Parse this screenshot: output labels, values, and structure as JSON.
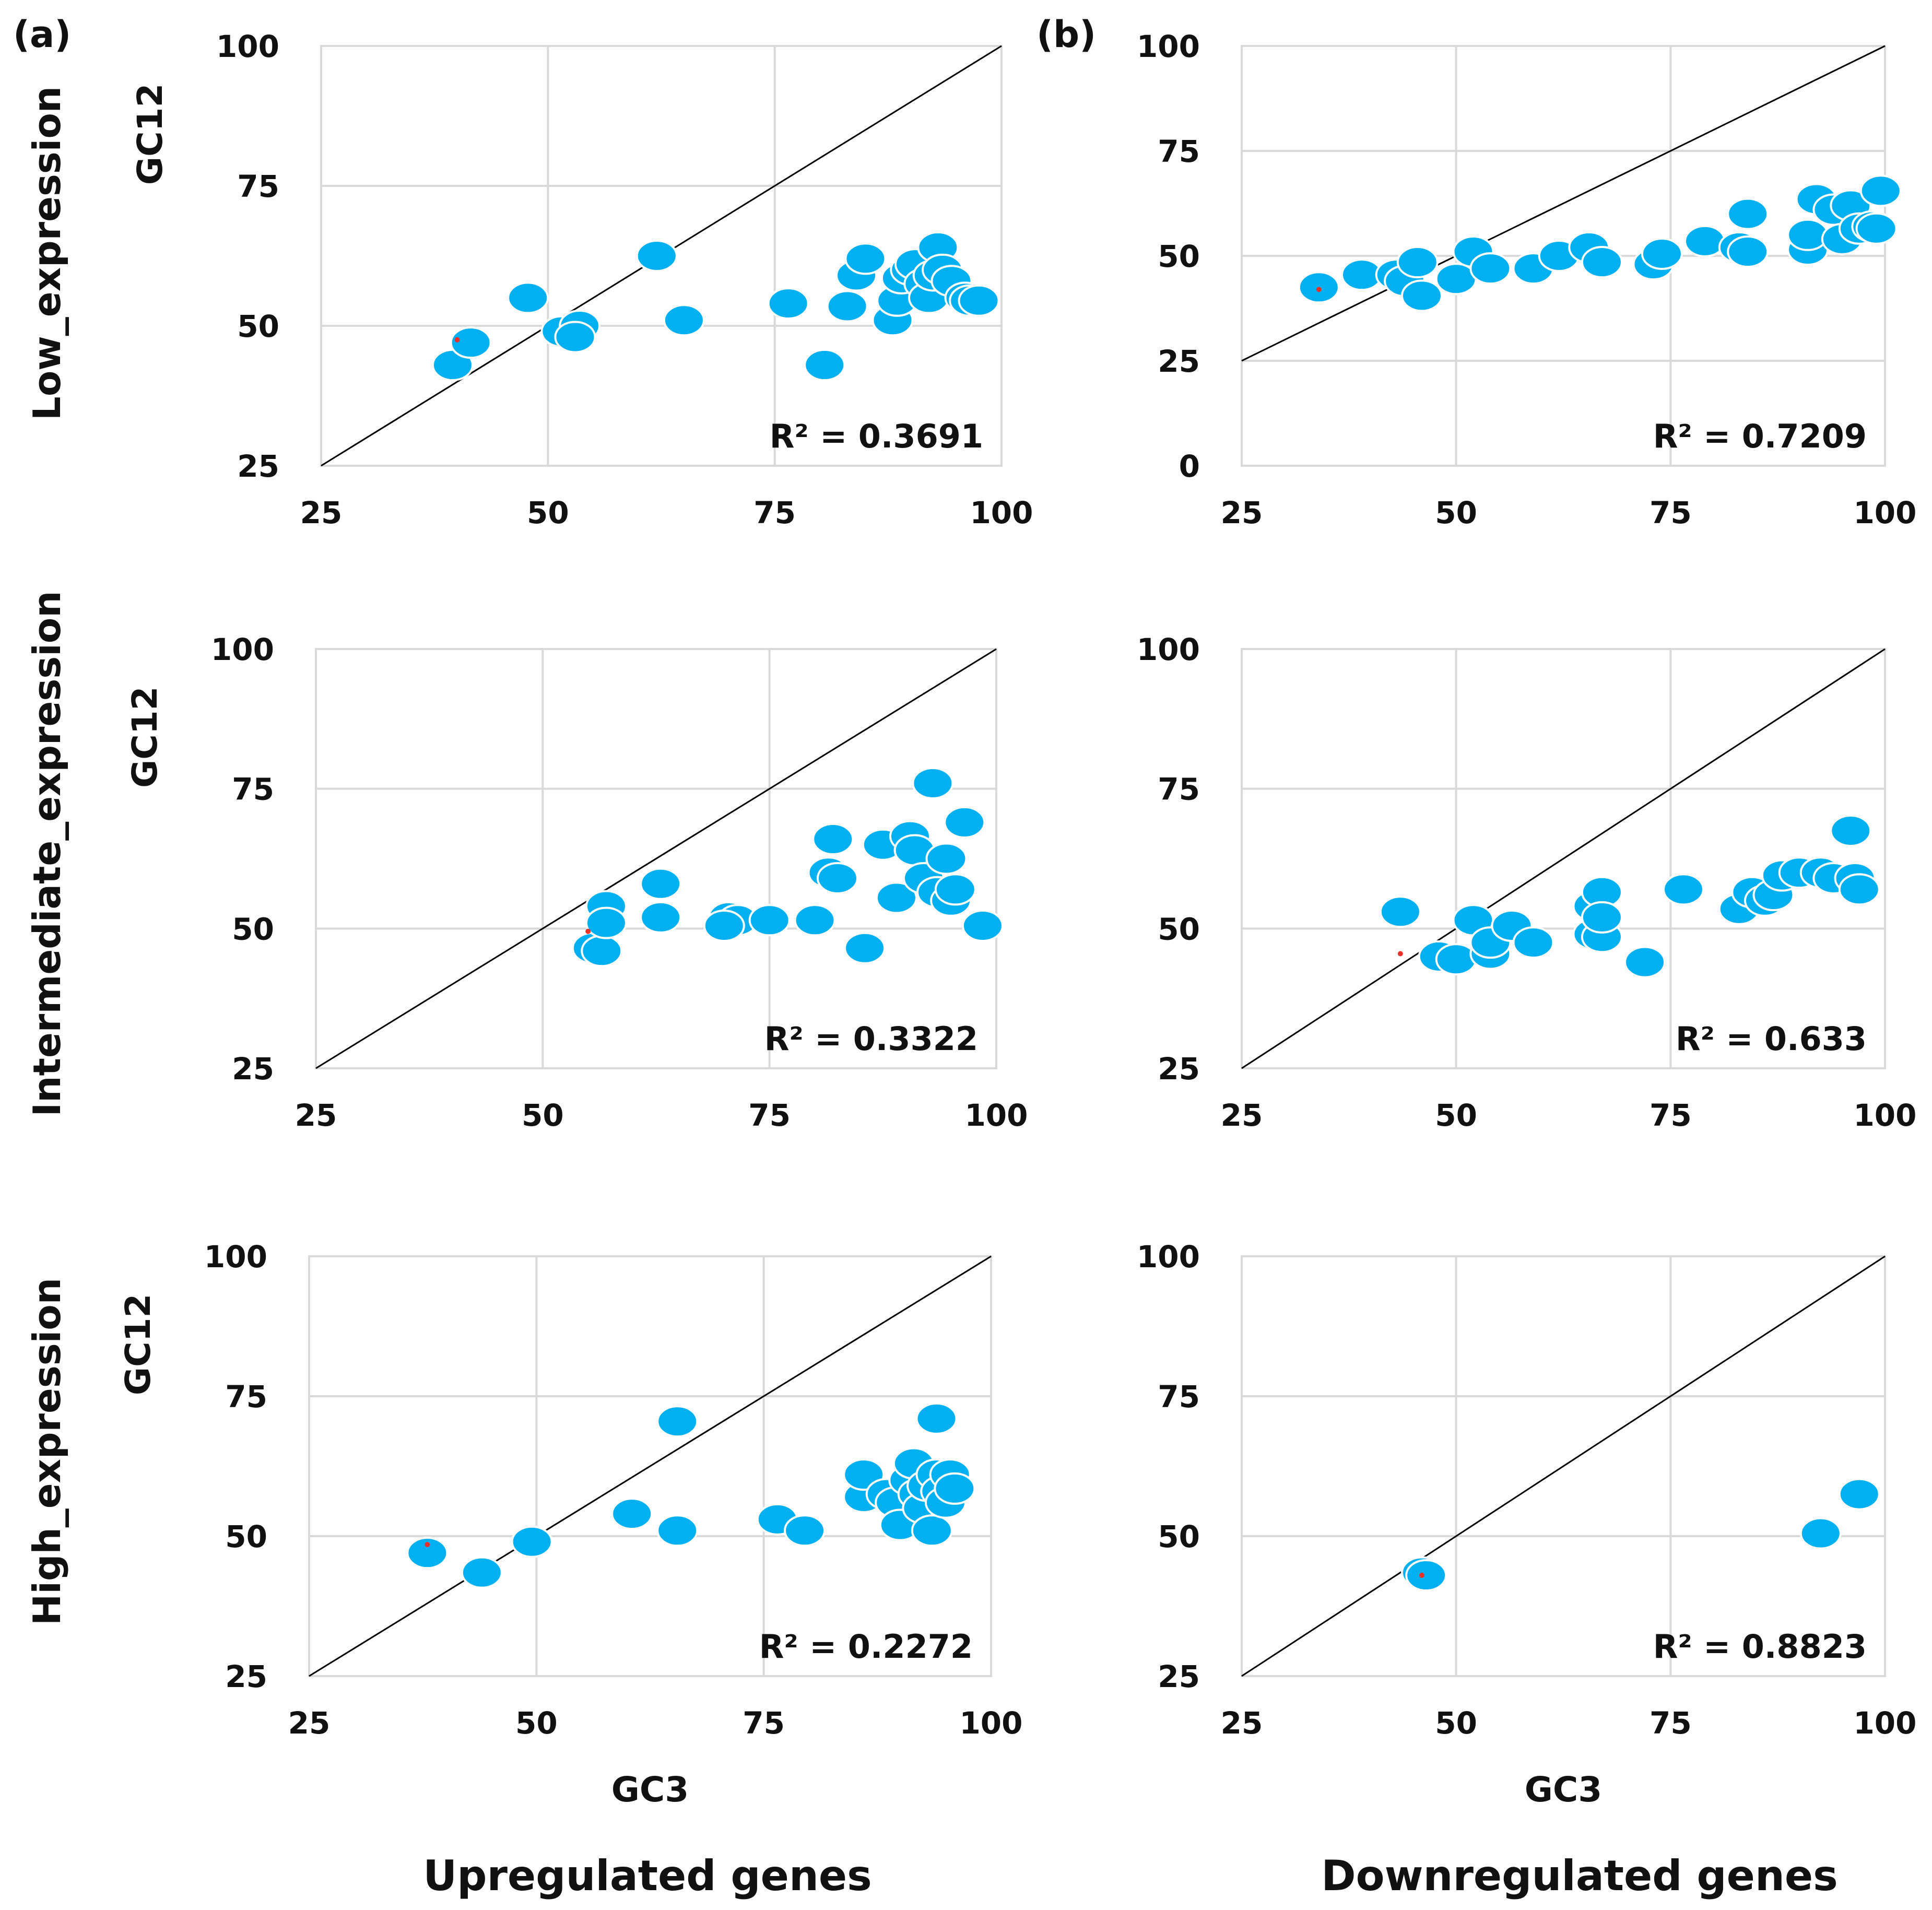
{
  "chart_data": [
    {
      "type": "scatter",
      "panel_label": "(a)",
      "row_label": "Low_expression",
      "xlabel": "",
      "ylabel": "GC12",
      "xlim": [
        25,
        100
      ],
      "ylim": [
        25,
        100
      ],
      "xticks": [
        "25",
        "50",
        "75",
        "100"
      ],
      "yticks": [
        "25",
        "50",
        "75",
        "100"
      ],
      "r2": "R² = 0.3691",
      "x": [
        39.5,
        41.5,
        47.8,
        51.5,
        53.5,
        53.0,
        62.0,
        65.0,
        76.5,
        80.5,
        83.0,
        84.0,
        85.0,
        88.0,
        88.5,
        89.0,
        90.0,
        90.5,
        91.5,
        92.0,
        92.5,
        93.0,
        93.5,
        94.5,
        96.0,
        96.5,
        97.5
      ],
      "y": [
        43,
        47,
        55,
        49,
        50,
        48,
        62.5,
        51,
        54,
        43,
        53.5,
        59,
        62,
        51,
        54.5,
        58.5,
        60,
        61,
        57.5,
        55,
        59,
        64,
        60,
        58,
        55,
        54.5,
        54.5
      ],
      "marker_x": 40.0,
      "marker_y": 47.5
    },
    {
      "type": "scatter",
      "panel_label": "(b)",
      "row_label": "",
      "xlabel": "",
      "ylabel": "",
      "xlim": [
        25,
        100
      ],
      "ylim": [
        0,
        100
      ],
      "xticks": [
        "25",
        "50",
        "75",
        "100"
      ],
      "yticks": [
        "0",
        "25",
        "50",
        "75",
        "100"
      ],
      "r2": "R² = 0.7209",
      "x": [
        34,
        39,
        43,
        44,
        45.5,
        46,
        50,
        52,
        54,
        59,
        62,
        65.5,
        67,
        73,
        74,
        79,
        83,
        84,
        84,
        91,
        91,
        92,
        94,
        95,
        96,
        97,
        98.5,
        99,
        99.5
      ],
      "y": [
        42.5,
        45.5,
        45.5,
        44,
        48.5,
        40.5,
        44.5,
        51,
        47,
        47,
        50,
        52,
        48.5,
        48,
        50.5,
        53.5,
        52,
        51,
        60,
        51.5,
        55,
        63.5,
        61,
        54,
        62,
        56.5,
        57,
        56.5,
        65.5
      ],
      "marker_x": 34.0,
      "marker_y": 42.0
    },
    {
      "type": "scatter",
      "panel_label": "",
      "row_label": "Intermediate_expression",
      "xlabel": "",
      "ylabel": "GC12",
      "xlim": [
        25,
        100
      ],
      "ylim": [
        25,
        100
      ],
      "xticks": [
        "25",
        "50",
        "75",
        "100"
      ],
      "yticks": [
        "25",
        "50",
        "75",
        "100"
      ],
      "r2": "R² = 0.3322",
      "x": [
        55.5,
        56.5,
        57,
        57,
        63,
        63,
        70.5,
        71.5,
        75,
        80,
        70,
        81.5,
        82,
        82.5,
        85.5,
        87.5,
        89,
        90.5,
        91,
        92,
        93,
        93.5,
        94.5,
        95,
        95.5,
        96.5,
        98.5
      ],
      "y": [
        46.5,
        46,
        54,
        51,
        58,
        52,
        52,
        51.5,
        51.5,
        51.5,
        50.5,
        60,
        66,
        59,
        46.5,
        65,
        55.5,
        66.5,
        64,
        59,
        76,
        56.5,
        62.5,
        55,
        57,
        69,
        50.5
      ],
      "marker_x": 55.0,
      "marker_y": 49.5
    },
    {
      "type": "scatter",
      "panel_label": "",
      "row_label": "",
      "xlabel": "",
      "ylabel": "",
      "xlim": [
        25,
        100
      ],
      "ylim": [
        25,
        100
      ],
      "xticks": [
        "25",
        "50",
        "75",
        "100"
      ],
      "yticks": [
        "25",
        "50",
        "75",
        "100"
      ],
      "r2": "R² = 0.633",
      "x": [
        43.5,
        48,
        50,
        52,
        54,
        54,
        56.5,
        59,
        66,
        66,
        67,
        67,
        67,
        72,
        76.5,
        83,
        84.5,
        86,
        87,
        88,
        90,
        92.5,
        94,
        96,
        96.5,
        97
      ],
      "y": [
        53,
        45,
        44.5,
        51.5,
        45.5,
        47.5,
        50.5,
        47.5,
        49,
        54,
        56.5,
        48.5,
        52,
        44,
        57,
        53.5,
        56.5,
        55,
        56,
        59.5,
        60,
        60,
        59,
        67.5,
        59,
        57
      ],
      "marker_x": 43.5,
      "marker_y": 45.5
    },
    {
      "type": "scatter",
      "panel_label": "",
      "row_label": "High_expression",
      "xlabel": "GC3",
      "ylabel": "GC12",
      "xlim": [
        25,
        100
      ],
      "ylim": [
        25,
        100
      ],
      "xticks": [
        "25",
        "50",
        "75",
        "100"
      ],
      "yticks": [
        "25",
        "50",
        "75",
        "100"
      ],
      "r2": "R² = 0.2272",
      "x": [
        38,
        44,
        49.5,
        60.5,
        65.5,
        65.5,
        76.5,
        79.5,
        86,
        86,
        88.5,
        89.5,
        90,
        91,
        91.5,
        92,
        92.5,
        93,
        93.5,
        94,
        94,
        94.5,
        95,
        95.5,
        96
      ],
      "y": [
        47,
        43.5,
        49,
        54,
        70.5,
        51,
        53,
        51,
        57,
        61,
        57.5,
        56,
        52,
        60,
        63,
        57.5,
        55,
        59,
        51,
        61,
        71,
        58,
        56,
        61,
        58.5
      ],
      "marker_x": 38.0,
      "marker_y": 48.5
    },
    {
      "type": "scatter",
      "panel_label": "",
      "row_label": "",
      "xlabel": "GC3",
      "ylabel": "",
      "xlim": [
        25,
        100
      ],
      "ylim": [
        25,
        100
      ],
      "xticks": [
        "25",
        "50",
        "75",
        "100"
      ],
      "yticks": [
        "25",
        "50",
        "75",
        "100"
      ],
      "r2": "R² = 0.8823",
      "x": [
        46,
        46.5,
        92.5,
        97
      ],
      "y": [
        43.5,
        43,
        50.5,
        57.5
      ],
      "marker_x": 46.0,
      "marker_y": 43.0
    }
  ],
  "group_labels": {
    "left": "Upregulated genes",
    "right": "Downregulated genes"
  }
}
